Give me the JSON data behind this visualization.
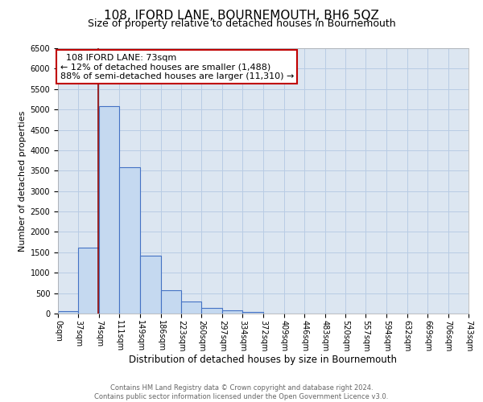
{
  "title": "108, IFORD LANE, BOURNEMOUTH, BH6 5QZ",
  "subtitle": "Size of property relative to detached houses in Bournemouth",
  "xlabel": "Distribution of detached houses by size in Bournemouth",
  "ylabel": "Number of detached properties",
  "annotation_title": "108 IFORD LANE: 73sqm",
  "annotation_line1": "← 12% of detached houses are smaller (1,488)",
  "annotation_line2": "88% of semi-detached houses are larger (11,310) →",
  "bin_edges": [
    0,
    37,
    74,
    111,
    149,
    186,
    223,
    260,
    297,
    334,
    372,
    409,
    446,
    483,
    520,
    557,
    594,
    632,
    669,
    706,
    743
  ],
  "bin_counts": [
    50,
    1620,
    5080,
    3580,
    1420,
    580,
    295,
    145,
    70,
    30,
    5,
    0,
    0,
    0,
    0,
    0,
    0,
    0,
    0,
    0
  ],
  "bar_facecolor": "#c5d9f0",
  "bar_edgecolor": "#4472c4",
  "vline_color": "#8b0000",
  "vline_x": 73,
  "ylim": [
    0,
    6500
  ],
  "yticks": [
    0,
    500,
    1000,
    1500,
    2000,
    2500,
    3000,
    3500,
    4000,
    4500,
    5000,
    5500,
    6000,
    6500
  ],
  "grid_color": "#b8cce4",
  "background_color": "#dce6f1",
  "annotation_box_edgecolor": "#c00000",
  "annotation_box_facecolor": "#ffffff",
  "footer_line1": "Contains HM Land Registry data © Crown copyright and database right 2024.",
  "footer_line2": "Contains public sector information licensed under the Open Government Licence v3.0.",
  "title_fontsize": 11,
  "subtitle_fontsize": 9,
  "xlabel_fontsize": 8.5,
  "ylabel_fontsize": 8,
  "tick_fontsize": 7,
  "annotation_fontsize": 8,
  "footer_fontsize": 6
}
